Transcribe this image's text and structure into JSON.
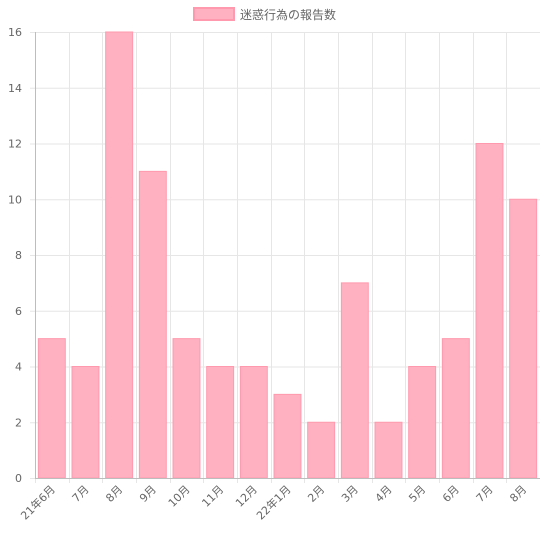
{
  "chart_data": {
    "type": "bar",
    "categories": [
      "21年6月",
      "7月",
      "8月",
      "9月",
      "10月",
      "11月",
      "12月",
      "22年1月",
      "2月",
      "3月",
      "4月",
      "5月",
      "6月",
      "7月",
      "8月"
    ],
    "series": [
      {
        "name": "迷惑行為の報告数",
        "values": [
          5,
          4,
          16,
          11,
          5,
          4,
          4,
          3,
          2,
          7,
          2,
          4,
          5,
          12,
          10
        ]
      }
    ],
    "ylim": [
      0,
      16
    ],
    "yticks": [
      0,
      2,
      4,
      6,
      8,
      10,
      12,
      14,
      16
    ],
    "grid": true,
    "legend_position": "top"
  },
  "colors": {
    "bar_fill": "#ffb1c1",
    "bar_stroke": "#ff99ae",
    "grid": "#e6e6e6",
    "text": "#666666"
  }
}
